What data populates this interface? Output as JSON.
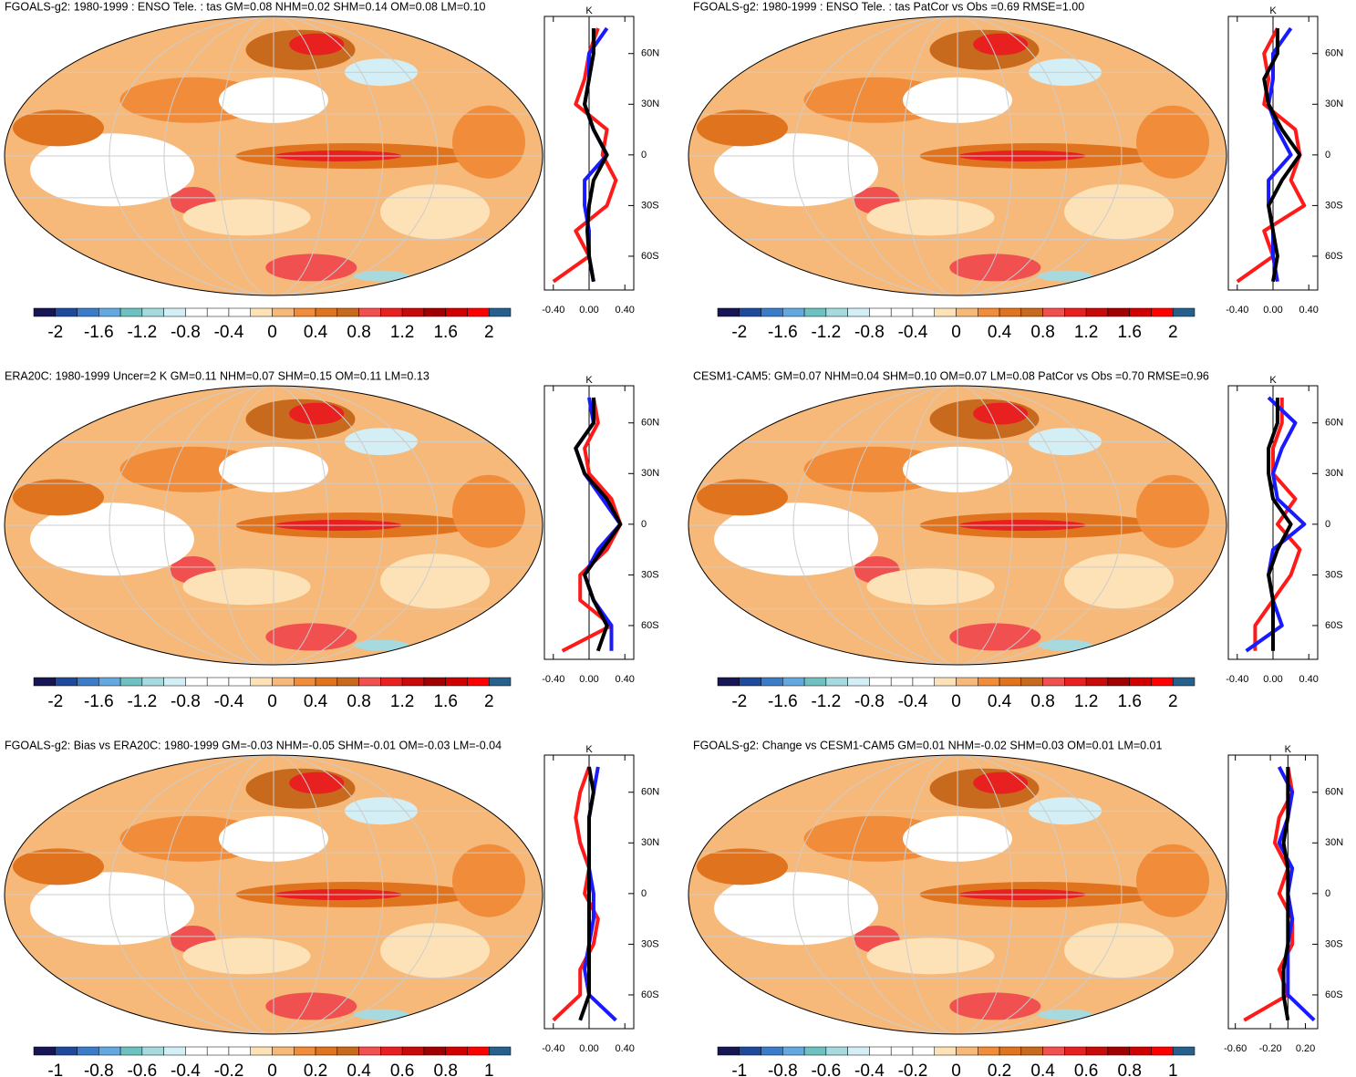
{
  "chart_data": [
    {
      "type": "line",
      "title": "FGOALS-g2: 1980-1999 : ENSO Tele. : tas GM=0.08 NHM=0.02 SHM=0.14 OM=0.08 LM=0.10",
      "unit": "K",
      "y": [
        75,
        60,
        45,
        30,
        15,
        0,
        -15,
        -30,
        -45,
        -60,
        -75
      ],
      "xlim": [
        -0.5,
        0.5
      ],
      "xticks": [
        {
          "value": -0.4,
          "label": "-0.40"
        },
        {
          "value": 0,
          "label": "0.00"
        },
        {
          "value": 0.4,
          "label": "0.40"
        }
      ],
      "ylim": [
        -80,
        82
      ],
      "yticks": [
        {
          "value": 60,
          "label": "60N"
        },
        {
          "value": 30,
          "label": "30N"
        },
        0,
        {
          "value": -30,
          "label": "30S"
        },
        {
          "value": -60,
          "label": "60S"
        }
      ],
      "series": [
        {
          "color": "#ff1a1a",
          "values": [
            0.1,
            0.0,
            -0.05,
            -0.15,
            0.2,
            0.15,
            0.3,
            0.2,
            -0.15,
            0.0,
            -0.4
          ]
        },
        {
          "color": "#1a1aff",
          "values": [
            0.2,
            0.0,
            0.0,
            -0.05,
            0.05,
            0.2,
            -0.05,
            -0.05,
            0.0,
            0.0,
            0.05
          ]
        },
        {
          "color": "#000000",
          "values": [
            0.05,
            0.05,
            0.0,
            -0.05,
            0.05,
            0.2,
            0.05,
            0.0,
            -0.02,
            0.0,
            0.05
          ]
        }
      ],
      "colorbar": {
        "lim": [
          -2.2,
          2.2
        ],
        "ticks": [
          -2,
          -1.6,
          -1.2,
          -0.8,
          -0.4,
          0,
          0.4,
          0.8,
          1.2,
          1.6,
          2
        ],
        "colors": [
          "#161654",
          "#1f4a9c",
          "#3a7cc8",
          "#64a8e0",
          "#6fc0c0",
          "#a6dadf",
          "#d3eef4",
          "#ffffff",
          "#ffffff",
          "#ffffff",
          "#fde2b8",
          "#f7b97a",
          "#f08c3a",
          "#e0731e",
          "#c86a1e",
          "#f05050",
          "#e82020",
          "#c80a0a",
          "#a00000",
          "#d00000",
          "#ff0000",
          "#28608c"
        ]
      }
    },
    {
      "type": "line",
      "title": "FGOALS-g2: 1980-1999 : ENSO Tele. : tas PatCor vs Obs =0.69 RMSE=1.00",
      "unit": "K",
      "y": [
        75,
        60,
        45,
        30,
        15,
        0,
        -15,
        -30,
        -45,
        -60,
        -75
      ],
      "xlim": [
        -0.5,
        0.5
      ],
      "xticks": [
        {
          "value": -0.4,
          "label": "-0.40"
        },
        {
          "value": 0,
          "label": "0.00"
        },
        {
          "value": 0.4,
          "label": "0.40"
        }
      ],
      "ylim": [
        -80,
        82
      ],
      "yticks": [
        {
          "value": 60,
          "label": "60N"
        },
        {
          "value": 30,
          "label": "30N"
        },
        0,
        {
          "value": -30,
          "label": "30S"
        },
        {
          "value": -60,
          "label": "60S"
        }
      ],
      "series": [
        {
          "color": "#ff1a1a",
          "values": [
            0.05,
            -0.1,
            -0.05,
            -0.1,
            0.25,
            0.3,
            0.2,
            0.35,
            -0.1,
            0.0,
            -0.4
          ]
        },
        {
          "color": "#1a1aff",
          "values": [
            0.2,
            0.0,
            0.0,
            -0.05,
            0.05,
            0.2,
            -0.05,
            -0.05,
            0.0,
            0.0,
            0.05
          ]
        },
        {
          "color": "#000000",
          "values": [
            0.05,
            0.05,
            -0.1,
            -0.05,
            0.1,
            0.3,
            0.1,
            -0.05,
            0.0,
            0.05,
            0.0
          ]
        }
      ],
      "colorbar": {
        "lim": [
          -2.2,
          2.2
        ],
        "ticks": [
          -2,
          -1.6,
          -1.2,
          -0.8,
          -0.4,
          0,
          0.4,
          0.8,
          1.2,
          1.6,
          2
        ],
        "colors": [
          "#161654",
          "#1f4a9c",
          "#3a7cc8",
          "#64a8e0",
          "#6fc0c0",
          "#a6dadf",
          "#d3eef4",
          "#ffffff",
          "#ffffff",
          "#ffffff",
          "#fde2b8",
          "#f7b97a",
          "#f08c3a",
          "#e0731e",
          "#c86a1e",
          "#f05050",
          "#e82020",
          "#c80a0a",
          "#a00000",
          "#d00000",
          "#ff0000",
          "#28608c"
        ]
      }
    },
    {
      "type": "line",
      "title": "ERA20C: 1980-1999 Uncer=2 K GM=0.11 NHM=0.07 SHM=0.15 OM=0.11 LM=0.13",
      "unit": "K",
      "y": [
        75,
        60,
        45,
        30,
        15,
        0,
        -15,
        -30,
        -45,
        -60,
        -75
      ],
      "xlim": [
        -0.5,
        0.5
      ],
      "xticks": [
        {
          "value": -0.4,
          "label": "-0.40"
        },
        {
          "value": 0,
          "label": "0.00"
        },
        {
          "value": 0.4,
          "label": "0.40"
        }
      ],
      "ylim": [
        -80,
        82
      ],
      "yticks": [
        {
          "value": 60,
          "label": "60N"
        },
        {
          "value": 30,
          "label": "30N"
        },
        0,
        {
          "value": -30,
          "label": "30S"
        },
        {
          "value": -60,
          "label": "60S"
        }
      ],
      "series": [
        {
          "color": "#ff1a1a",
          "values": [
            0.05,
            0.1,
            -0.05,
            0.0,
            0.25,
            0.35,
            0.2,
            -0.1,
            -0.1,
            0.25,
            -0.3
          ]
        },
        {
          "color": "#1a1aff",
          "values": [
            0.0,
            0.05,
            -0.15,
            -0.05,
            0.15,
            0.35,
            0.1,
            -0.05,
            0.05,
            0.25,
            0.25
          ]
        },
        {
          "color": "#000000",
          "values": [
            0.05,
            0.05,
            -0.15,
            -0.05,
            0.2,
            0.35,
            0.15,
            -0.05,
            0.05,
            0.2,
            0.1
          ]
        }
      ],
      "colorbar": {
        "lim": [
          -2.2,
          2.2
        ],
        "ticks": [
          -2,
          -1.6,
          -1.2,
          -0.8,
          -0.4,
          0,
          0.4,
          0.8,
          1.2,
          1.6,
          2
        ],
        "colors": [
          "#161654",
          "#1f4a9c",
          "#3a7cc8",
          "#64a8e0",
          "#6fc0c0",
          "#a6dadf",
          "#d3eef4",
          "#ffffff",
          "#ffffff",
          "#ffffff",
          "#fde2b8",
          "#f7b97a",
          "#f08c3a",
          "#e0731e",
          "#c86a1e",
          "#f05050",
          "#e82020",
          "#c80a0a",
          "#a00000",
          "#d00000",
          "#ff0000",
          "#28608c"
        ]
      }
    },
    {
      "type": "line",
      "title": "CESM1-CAM5: GM=0.07 NHM=0.04 SHM=0.10 OM=0.07 LM=0.08 PatCor vs Obs =0.70 RMSE=0.96",
      "unit": "K",
      "y": [
        75,
        60,
        45,
        30,
        15,
        0,
        -15,
        -30,
        -45,
        -60,
        -75
      ],
      "xlim": [
        -0.5,
        0.5
      ],
      "xticks": [
        {
          "value": -0.4,
          "label": "-0.40"
        },
        {
          "value": 0,
          "label": "0.00"
        },
        {
          "value": 0.4,
          "label": "0.40"
        }
      ],
      "ylim": [
        -80,
        82
      ],
      "yticks": [
        {
          "value": 60,
          "label": "60N"
        },
        {
          "value": 30,
          "label": "30N"
        },
        0,
        {
          "value": -30,
          "label": "30S"
        },
        {
          "value": -60,
          "label": "60S"
        }
      ],
      "series": [
        {
          "color": "#ff1a1a",
          "values": [
            0.1,
            0.1,
            0.0,
            0.0,
            0.25,
            0.05,
            0.3,
            0.2,
            0.0,
            -0.2,
            -0.2
          ]
        },
        {
          "color": "#1a1aff",
          "values": [
            -0.05,
            0.25,
            0.1,
            0.0,
            0.05,
            0.35,
            0.0,
            -0.05,
            0.0,
            0.1,
            -0.3
          ]
        },
        {
          "color": "#000000",
          "values": [
            0.05,
            0.05,
            -0.05,
            -0.05,
            0.0,
            0.2,
            0.05,
            -0.05,
            0.0,
            0.0,
            0.0
          ]
        }
      ],
      "colorbar": {
        "lim": [
          -2.2,
          2.2
        ],
        "ticks": [
          -2,
          -1.6,
          -1.2,
          -0.8,
          -0.4,
          0,
          0.4,
          0.8,
          1.2,
          1.6,
          2
        ],
        "colors": [
          "#161654",
          "#1f4a9c",
          "#3a7cc8",
          "#64a8e0",
          "#6fc0c0",
          "#a6dadf",
          "#d3eef4",
          "#ffffff",
          "#ffffff",
          "#ffffff",
          "#fde2b8",
          "#f7b97a",
          "#f08c3a",
          "#e0731e",
          "#c86a1e",
          "#f05050",
          "#e82020",
          "#c80a0a",
          "#a00000",
          "#d00000",
          "#ff0000",
          "#28608c"
        ]
      }
    },
    {
      "type": "line",
      "title": "FGOALS-g2: Bias vs ERA20C: 1980-1999 GM=-0.03 NHM=-0.05 SHM=-0.01 OM=-0.03 LM=-0.04",
      "unit": "K",
      "y": [
        75,
        60,
        45,
        30,
        15,
        0,
        -15,
        -30,
        -45,
        -60,
        -75
      ],
      "xlim": [
        -0.5,
        0.5
      ],
      "xticks": [
        {
          "value": -0.4,
          "label": "-0.40"
        },
        {
          "value": 0,
          "label": "0.00"
        },
        {
          "value": 0.4,
          "label": "0.40"
        }
      ],
      "ylim": [
        -80,
        82
      ],
      "yticks": [
        {
          "value": 60,
          "label": "60N"
        },
        {
          "value": 30,
          "label": "30N"
        },
        0,
        {
          "value": -30,
          "label": "30S"
        },
        {
          "value": -60,
          "label": "60S"
        }
      ],
      "series": [
        {
          "color": "#ff1a1a",
          "values": [
            0.0,
            -0.1,
            -0.15,
            -0.1,
            0.0,
            -0.05,
            0.1,
            0.05,
            -0.1,
            -0.1,
            -0.4
          ]
        },
        {
          "color": "#1a1aff",
          "values": [
            0.1,
            0.05,
            0.0,
            0.0,
            0.0,
            0.05,
            0.05,
            0.0,
            -0.05,
            0.0,
            0.3
          ]
        },
        {
          "color": "#000000",
          "values": [
            0.0,
            0.05,
            0.0,
            0.0,
            0.0,
            0.0,
            0.0,
            0.0,
            0.0,
            0.0,
            -0.1
          ]
        }
      ],
      "colorbar": {
        "lim": [
          -1.1,
          1.1
        ],
        "ticks": [
          -1,
          -0.8,
          -0.6,
          -0.4,
          -0.2,
          0,
          0.2,
          0.4,
          0.6,
          0.8,
          1
        ],
        "colors": [
          "#161654",
          "#1f4a9c",
          "#3a7cc8",
          "#64a8e0",
          "#6fc0c0",
          "#a6dadf",
          "#d3eef4",
          "#ffffff",
          "#ffffff",
          "#ffffff",
          "#fde2b8",
          "#f7b97a",
          "#f08c3a",
          "#e0731e",
          "#c86a1e",
          "#f05050",
          "#e82020",
          "#c80a0a",
          "#a00000",
          "#d00000",
          "#ff0000",
          "#28608c"
        ]
      }
    },
    {
      "type": "line",
      "title": "FGOALS-g2: Change vs CESM1-CAM5 GM=0.01 NHM=-0.02 SHM=0.03 OM=0.01 LM=0.01",
      "unit": "K",
      "y": [
        75,
        60,
        45,
        30,
        15,
        0,
        -15,
        -30,
        -45,
        -60,
        -75
      ],
      "xlim": [
        -0.68,
        0.34
      ],
      "xticks": [
        {
          "value": -0.6,
          "label": "-0.60"
        },
        {
          "value": -0.2,
          "label": "-0.20"
        },
        {
          "value": 0.2,
          "label": "0.20"
        }
      ],
      "ylim": [
        -80,
        82
      ],
      "yticks": [
        {
          "value": 60,
          "label": "60N"
        },
        {
          "value": 30,
          "label": "30N"
        },
        0,
        {
          "value": -30,
          "label": "30S"
        },
        {
          "value": -60,
          "label": "60S"
        }
      ],
      "series": [
        {
          "color": "#ff1a1a",
          "values": [
            0.0,
            0.05,
            -0.1,
            -0.15,
            0.0,
            -0.1,
            0.05,
            0.05,
            -0.1,
            0.0,
            -0.5
          ]
        },
        {
          "color": "#1a1aff",
          "values": [
            -0.1,
            0.05,
            0.0,
            -0.1,
            0.05,
            0.0,
            0.05,
            0.0,
            0.0,
            0.0,
            0.3
          ]
        },
        {
          "color": "#000000",
          "values": [
            0.0,
            0.0,
            0.0,
            -0.05,
            0.0,
            0.0,
            0.0,
            0.0,
            -0.05,
            -0.05,
            0.0
          ]
        }
      ],
      "colorbar": {
        "lim": [
          -1.1,
          1.1
        ],
        "ticks": [
          -1,
          -0.8,
          -0.6,
          -0.4,
          -0.2,
          0,
          0.2,
          0.4,
          0.6,
          0.8,
          1
        ],
        "colors": [
          "#161654",
          "#1f4a9c",
          "#3a7cc8",
          "#64a8e0",
          "#6fc0c0",
          "#a6dadf",
          "#d3eef4",
          "#ffffff",
          "#ffffff",
          "#ffffff",
          "#fde2b8",
          "#f7b97a",
          "#f08c3a",
          "#e0731e",
          "#c86a1e",
          "#f05050",
          "#e82020",
          "#c80a0a",
          "#a00000",
          "#d00000",
          "#ff0000",
          "#28608c"
        ]
      }
    }
  ]
}
